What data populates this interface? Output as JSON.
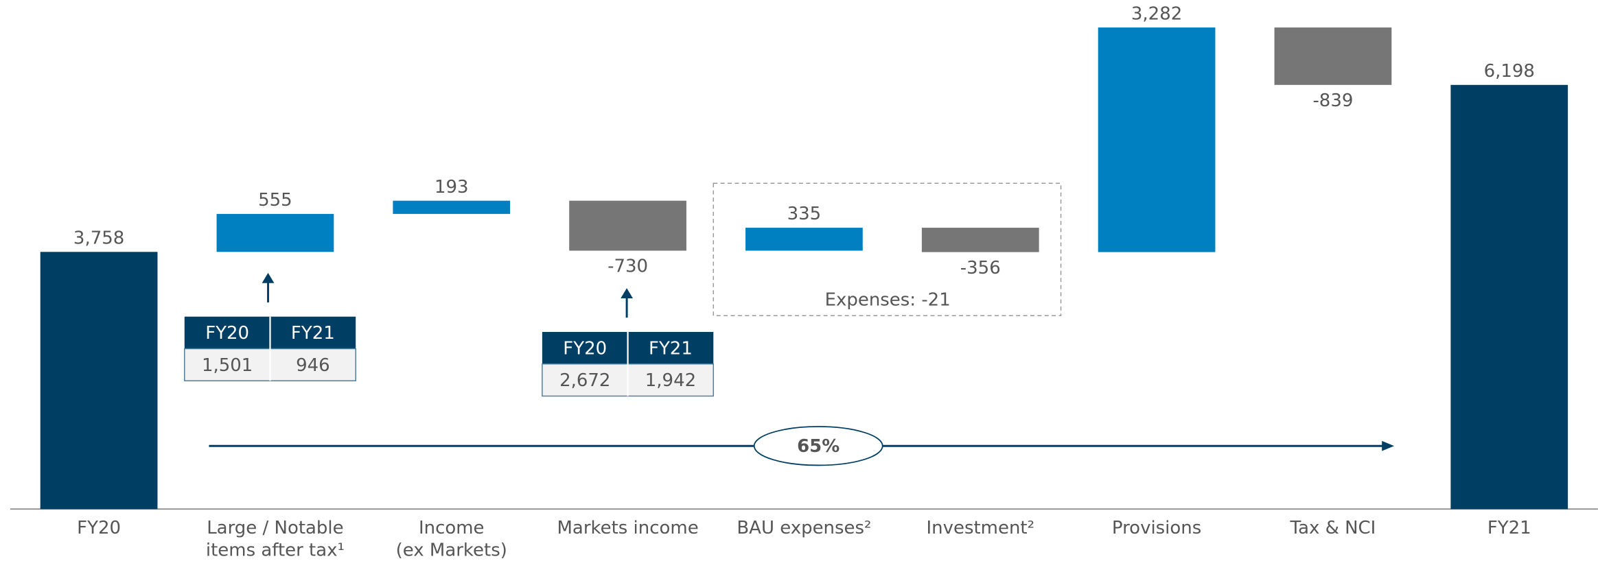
{
  "chart_data": {
    "type": "waterfall",
    "categories": [
      [
        "FY20"
      ],
      [
        "Large / Notable",
        "items after tax¹"
      ],
      [
        "Income",
        "(ex Markets)"
      ],
      [
        "Markets income"
      ],
      [
        "BAU expenses²"
      ],
      [
        "Investment²"
      ],
      [
        "Provisions"
      ],
      [
        "Tax & NCI"
      ],
      [
        "FY21"
      ]
    ],
    "values": [
      3758,
      555,
      193,
      -730,
      335,
      -356,
      3282,
      -839,
      6198
    ],
    "value_labels": [
      "3,758",
      "555",
      "193",
      "-730",
      "335",
      "-356",
      "3,282",
      "-839",
      "6,198"
    ],
    "measure": [
      "total",
      "relative",
      "relative",
      "relative",
      "relative",
      "relative",
      "relative",
      "relative",
      "total"
    ],
    "colors": {
      "total": "#003f63",
      "increase": "#0080c0",
      "decrease": "#767676"
    },
    "annotations": {
      "tables": [
        {
          "header": [
            "FY20",
            "FY21"
          ],
          "values": [
            1501,
            946
          ],
          "value_labels": [
            "1,501",
            "946"
          ]
        },
        {
          "header": [
            "FY20",
            "FY21"
          ],
          "values": [
            2672,
            1942
          ],
          "value_labels": [
            "2,672",
            "1,942"
          ]
        }
      ],
      "group_label": "Expenses: -21",
      "growth": "65%"
    }
  }
}
